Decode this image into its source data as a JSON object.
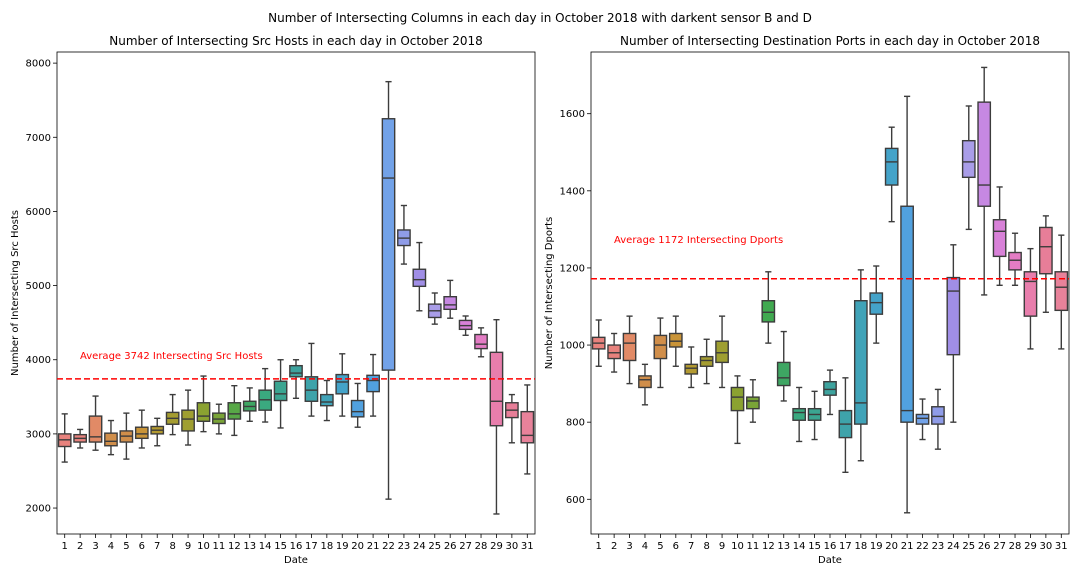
{
  "figure": {
    "suptitle": "Number of Intersecting Columns in each day in October 2018 with darkent sensor B and D"
  },
  "palette": [
    "#e8827d",
    "#e78c66",
    "#dc8d4f",
    "#c99438",
    "#b39a31",
    "#9f9f31",
    "#8ba231",
    "#6ea53c",
    "#40a950",
    "#39a77f",
    "#3ba591",
    "#3da39e",
    "#3ea3aa",
    "#40a3b8",
    "#44a3c9",
    "#51a1df",
    "#8f9ce8",
    "#a08ee6",
    "#c688e2",
    "#d881d8",
    "#e37cc4",
    "#e87eac",
    "#e77e98",
    "#e8827d",
    "#e78c66",
    "#dc8d4f",
    "#c99438",
    "#b39a31",
    "#9f9f31",
    "#8ba231",
    "#6ea53c"
  ],
  "chart_data": [
    {
      "type": "box",
      "title": "Number of Intersecting Src Hosts in each day in October 2018",
      "xlabel": "Date",
      "ylabel": "Number of Intersecting Src Hosts",
      "ylim": [
        1650,
        8150
      ],
      "yticks": [
        2000,
        3000,
        4000,
        5000,
        6000,
        7000,
        8000
      ],
      "categories": [
        "1",
        "2",
        "3",
        "4",
        "5",
        "6",
        "7",
        "8",
        "9",
        "10",
        "11",
        "12",
        "13",
        "14",
        "15",
        "16",
        "17",
        "18",
        "19",
        "20",
        "21",
        "22",
        "23",
        "24",
        "25",
        "26",
        "27",
        "28",
        "29",
        "30",
        "31"
      ],
      "colors": [
        "#e8827d",
        "#e8827d",
        "#e18a66",
        "#d08e4a",
        "#d08e4a",
        "#c99438",
        "#b39a31",
        "#a59d31",
        "#9f9f31",
        "#8ba231",
        "#7aa437",
        "#58a847",
        "#3ea663",
        "#3aa97f",
        "#3ba591",
        "#3da39e",
        "#3ea3aa",
        "#40a3b8",
        "#44a3c9",
        "#51a1df",
        "#51a1df",
        "#72a2e8",
        "#8f9ce8",
        "#a08ee6",
        "#a99de8",
        "#c688e2",
        "#d881d8",
        "#e37cc4",
        "#e87eac",
        "#e77e98",
        "#e8829a"
      ],
      "boxes": [
        {
          "whislo": 2620,
          "q1": 2830,
          "med": 2920,
          "q3": 3000,
          "whishi": 3270
        },
        {
          "whislo": 2810,
          "q1": 2890,
          "med": 2940,
          "q3": 2990,
          "whishi": 3060
        },
        {
          "whislo": 2780,
          "q1": 2890,
          "med": 2960,
          "q3": 3240,
          "whishi": 3510
        },
        {
          "whislo": 2720,
          "q1": 2840,
          "med": 2900,
          "q3": 3010,
          "whishi": 3180
        },
        {
          "whislo": 2660,
          "q1": 2890,
          "med": 2970,
          "q3": 3040,
          "whishi": 3280
        },
        {
          "whislo": 2810,
          "q1": 2940,
          "med": 3000,
          "q3": 3090,
          "whishi": 3320
        },
        {
          "whislo": 2840,
          "q1": 3000,
          "med": 3050,
          "q3": 3100,
          "whishi": 3210
        },
        {
          "whislo": 2990,
          "q1": 3130,
          "med": 3210,
          "q3": 3290,
          "whishi": 3530
        },
        {
          "whislo": 2850,
          "q1": 3040,
          "med": 3200,
          "q3": 3320,
          "whishi": 3590
        },
        {
          "whislo": 3030,
          "q1": 3170,
          "med": 3240,
          "q3": 3420,
          "whishi": 3780
        },
        {
          "whislo": 3000,
          "q1": 3140,
          "med": 3200,
          "q3": 3280,
          "whishi": 3400
        },
        {
          "whislo": 2980,
          "q1": 3200,
          "med": 3270,
          "q3": 3420,
          "whishi": 3650
        },
        {
          "whislo": 3170,
          "q1": 3310,
          "med": 3370,
          "q3": 3440,
          "whishi": 3620
        },
        {
          "whislo": 3160,
          "q1": 3320,
          "med": 3460,
          "q3": 3590,
          "whishi": 3880
        },
        {
          "whislo": 3080,
          "q1": 3450,
          "med": 3540,
          "q3": 3710,
          "whishi": 4000
        },
        {
          "whislo": 3480,
          "q1": 3770,
          "med": 3820,
          "q3": 3920,
          "whishi": 4000
        },
        {
          "whislo": 3240,
          "q1": 3440,
          "med": 3590,
          "q3": 3770,
          "whishi": 4220
        },
        {
          "whislo": 3180,
          "q1": 3380,
          "med": 3430,
          "q3": 3530,
          "whishi": 3720
        },
        {
          "whislo": 3240,
          "q1": 3540,
          "med": 3700,
          "q3": 3800,
          "whishi": 4080
        },
        {
          "whislo": 3090,
          "q1": 3230,
          "med": 3300,
          "q3": 3450,
          "whishi": 3680
        },
        {
          "whislo": 3240,
          "q1": 3570,
          "med": 3720,
          "q3": 3790,
          "whishi": 4070
        },
        {
          "whislo": 2120,
          "q1": 3860,
          "med": 6450,
          "q3": 7250,
          "whishi": 7750
        },
        {
          "whislo": 5290,
          "q1": 5540,
          "med": 5640,
          "q3": 5750,
          "whishi": 6080
        },
        {
          "whislo": 4660,
          "q1": 4990,
          "med": 5080,
          "q3": 5220,
          "whishi": 5580
        },
        {
          "whislo": 4480,
          "q1": 4570,
          "med": 4660,
          "q3": 4750,
          "whishi": 4900
        },
        {
          "whislo": 4560,
          "q1": 4680,
          "med": 4740,
          "q3": 4850,
          "whishi": 5070
        },
        {
          "whislo": 4330,
          "q1": 4410,
          "med": 4460,
          "q3": 4530,
          "whishi": 4590
        },
        {
          "whislo": 4040,
          "q1": 4150,
          "med": 4210,
          "q3": 4340,
          "whishi": 4430
        },
        {
          "whislo": 1920,
          "q1": 3110,
          "med": 3440,
          "q3": 4100,
          "whishi": 4540
        },
        {
          "whislo": 2880,
          "q1": 3220,
          "med": 3320,
          "q3": 3420,
          "whishi": 3530
        },
        {
          "whislo": 2460,
          "q1": 2880,
          "med": 2980,
          "q3": 3300,
          "whishi": 3660
        }
      ],
      "reference_line": {
        "value": 3742,
        "label": "Average 3742 Intersecting Src Hosts",
        "color": "#ff0000"
      }
    },
    {
      "type": "box",
      "title": "Number of Intersecting Destination Ports in each day in October 2018",
      "xlabel": "Date",
      "ylabel": "Number of Intersecting Dports",
      "ylim": [
        510,
        1760
      ],
      "yticks": [
        600,
        800,
        1000,
        1200,
        1400,
        1600
      ],
      "categories": [
        "1",
        "2",
        "3",
        "4",
        "5",
        "6",
        "7",
        "8",
        "9",
        "10",
        "11",
        "12",
        "13",
        "14",
        "15",
        "16",
        "17",
        "18",
        "19",
        "20",
        "21",
        "22",
        "23",
        "24",
        "25",
        "26",
        "27",
        "28",
        "29",
        "30",
        "31"
      ],
      "colors": [
        "#e8827d",
        "#e8827d",
        "#e18a66",
        "#d08e4a",
        "#d08e4a",
        "#c99438",
        "#b39a31",
        "#a59d31",
        "#9f9f31",
        "#8ba231",
        "#7aa437",
        "#40a950",
        "#3ea663",
        "#3aa97f",
        "#3ba591",
        "#3da39e",
        "#3ea3aa",
        "#40a3b8",
        "#44a3c9",
        "#44a3c9",
        "#51a1df",
        "#72a2e8",
        "#8f9ce8",
        "#a08ee6",
        "#a99de8",
        "#c688e2",
        "#d881d8",
        "#e37cc4",
        "#e87eac",
        "#e77e98",
        "#e8829a"
      ],
      "boxes": [
        {
          "whislo": 945,
          "q1": 990,
          "med": 1005,
          "q3": 1020,
          "whishi": 1065
        },
        {
          "whislo": 930,
          "q1": 965,
          "med": 980,
          "q3": 1000,
          "whishi": 1030
        },
        {
          "whislo": 900,
          "q1": 960,
          "med": 1005,
          "q3": 1030,
          "whishi": 1075
        },
        {
          "whislo": 845,
          "q1": 890,
          "med": 910,
          "q3": 920,
          "whishi": 950
        },
        {
          "whislo": 890,
          "q1": 965,
          "med": 1000,
          "q3": 1025,
          "whishi": 1070
        },
        {
          "whislo": 945,
          "q1": 995,
          "med": 1010,
          "q3": 1030,
          "whishi": 1075
        },
        {
          "whislo": 890,
          "q1": 925,
          "med": 940,
          "q3": 950,
          "whishi": 995
        },
        {
          "whislo": 900,
          "q1": 945,
          "med": 960,
          "q3": 970,
          "whishi": 1015
        },
        {
          "whislo": 890,
          "q1": 955,
          "med": 980,
          "q3": 1010,
          "whishi": 1075
        },
        {
          "whislo": 745,
          "q1": 830,
          "med": 865,
          "q3": 890,
          "whishi": 920
        },
        {
          "whislo": 800,
          "q1": 835,
          "med": 855,
          "q3": 865,
          "whishi": 910
        },
        {
          "whislo": 1005,
          "q1": 1060,
          "med": 1085,
          "q3": 1115,
          "whishi": 1190
        },
        {
          "whislo": 855,
          "q1": 895,
          "med": 915,
          "q3": 955,
          "whishi": 1035
        },
        {
          "whislo": 750,
          "q1": 805,
          "med": 825,
          "q3": 835,
          "whishi": 890
        },
        {
          "whislo": 755,
          "q1": 805,
          "med": 820,
          "q3": 835,
          "whishi": 880
        },
        {
          "whislo": 820,
          "q1": 870,
          "med": 885,
          "q3": 905,
          "whishi": 935
        },
        {
          "whislo": 670,
          "q1": 760,
          "med": 795,
          "q3": 830,
          "whishi": 915
        },
        {
          "whislo": 700,
          "q1": 795,
          "med": 850,
          "q3": 1115,
          "whishi": 1195
        },
        {
          "whislo": 1005,
          "q1": 1080,
          "med": 1110,
          "q3": 1135,
          "whishi": 1205
        },
        {
          "whislo": 1320,
          "q1": 1415,
          "med": 1475,
          "q3": 1510,
          "whishi": 1565
        },
        {
          "whislo": 565,
          "q1": 800,
          "med": 830,
          "q3": 1360,
          "whishi": 1645
        },
        {
          "whislo": 755,
          "q1": 795,
          "med": 810,
          "q3": 820,
          "whishi": 860
        },
        {
          "whislo": 730,
          "q1": 795,
          "med": 815,
          "q3": 840,
          "whishi": 885
        },
        {
          "whislo": 800,
          "q1": 975,
          "med": 1140,
          "q3": 1175,
          "whishi": 1260
        },
        {
          "whislo": 1300,
          "q1": 1435,
          "med": 1475,
          "q3": 1530,
          "whishi": 1620
        },
        {
          "whislo": 1130,
          "q1": 1360,
          "med": 1415,
          "q3": 1630,
          "whishi": 1720
        },
        {
          "whislo": 1155,
          "q1": 1230,
          "med": 1295,
          "q3": 1325,
          "whishi": 1410
        },
        {
          "whislo": 1155,
          "q1": 1195,
          "med": 1220,
          "q3": 1240,
          "whishi": 1290
        },
        {
          "whislo": 990,
          "q1": 1075,
          "med": 1165,
          "q3": 1190,
          "whishi": 1250
        },
        {
          "whislo": 1085,
          "q1": 1185,
          "med": 1255,
          "q3": 1305,
          "whishi": 1335
        },
        {
          "whislo": 990,
          "q1": 1090,
          "med": 1150,
          "q3": 1190,
          "whishi": 1285
        }
      ],
      "reference_line": {
        "value": 1172,
        "label": "Average 1172 Intersecting Dports",
        "color": "#ff0000"
      }
    }
  ]
}
